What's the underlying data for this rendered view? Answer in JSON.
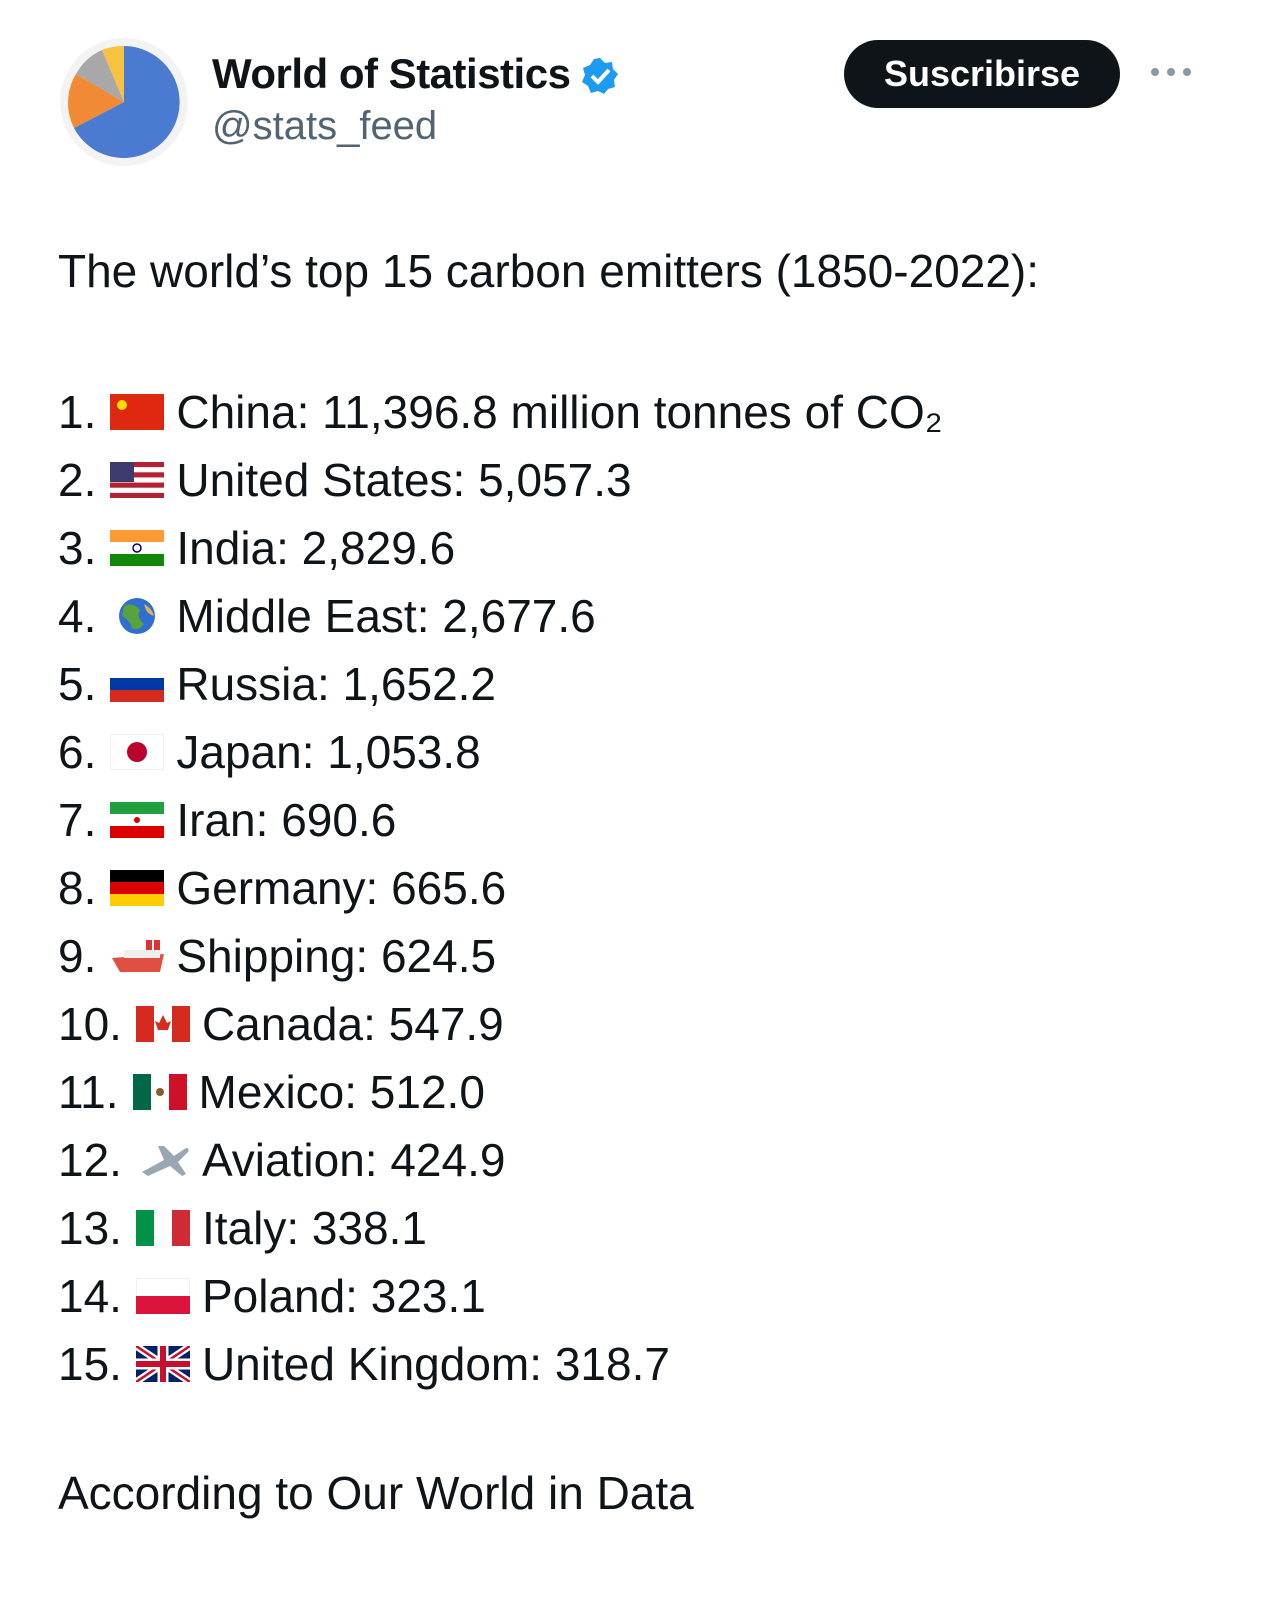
{
  "header": {
    "name": "World of Statistics",
    "handle": "@stats_feed",
    "button": "Suscribirse"
  },
  "post": {
    "intro": "The world’s top 15 carbon emitters (1850-2022):",
    "items": [
      {
        "rank": "1.",
        "text": "China: 11,396.8 million tonnes of CO₂"
      },
      {
        "rank": "2.",
        "text": "United States: 5,057.3"
      },
      {
        "rank": "3.",
        "text": "India: 2,829.6"
      },
      {
        "rank": "4.",
        "text": "Middle East: 2,677.6"
      },
      {
        "rank": "5.",
        "text": "Russia: 1,652.2"
      },
      {
        "rank": "6.",
        "text": "Japan: 1,053.8"
      },
      {
        "rank": "7.",
        "text": "Iran: 690.6"
      },
      {
        "rank": "8.",
        "text": "Germany: 665.6"
      },
      {
        "rank": "9.",
        "text": "Shipping: 624.5"
      },
      {
        "rank": "10.",
        "text": "Canada: 547.9"
      },
      {
        "rank": "11.",
        "text": "Mexico: 512.0"
      },
      {
        "rank": "12.",
        "text": "Aviation: 424.9"
      },
      {
        "rank": "13.",
        "text": "Italy: 338.1"
      },
      {
        "rank": "14.",
        "text": "Poland: 323.1"
      },
      {
        "rank": "15.",
        "text": "United Kingdom: 318.7"
      }
    ],
    "source": "According to Our World in Data"
  }
}
